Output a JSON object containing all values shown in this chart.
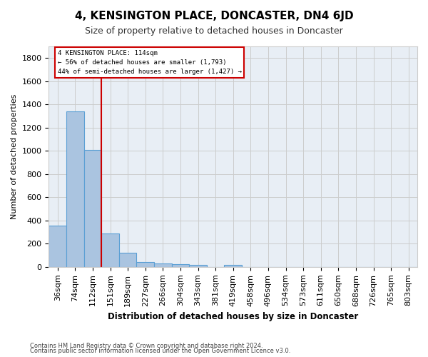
{
  "title": "4, KENSINGTON PLACE, DONCASTER, DN4 6JD",
  "subtitle": "Size of property relative to detached houses in Doncaster",
  "xlabel": "Distribution of detached houses by size in Doncaster",
  "ylabel": "Number of detached properties",
  "footnote1": "Contains HM Land Registry data © Crown copyright and database right 2024.",
  "footnote2": "Contains public sector information licensed under the Open Government Licence v3.0.",
  "bins": [
    "36sqm",
    "74sqm",
    "112sqm",
    "151sqm",
    "189sqm",
    "227sqm",
    "266sqm",
    "304sqm",
    "343sqm",
    "381sqm",
    "419sqm",
    "458sqm",
    "496sqm",
    "534sqm",
    "573sqm",
    "611sqm",
    "650sqm",
    "688sqm",
    "726sqm",
    "765sqm",
    "803sqm"
  ],
  "values": [
    355,
    1340,
    1010,
    285,
    125,
    40,
    30,
    22,
    18,
    0,
    20,
    0,
    0,
    0,
    0,
    0,
    0,
    0,
    0,
    0,
    0
  ],
  "bar_color": "#aac4e0",
  "bar_edge_color": "#5a9fd4",
  "grid_color": "#cccccc",
  "vline_x": 2.5,
  "vline_color": "#cc0000",
  "annotation_text": "4 KENSINGTON PLACE: 114sqm\n← 56% of detached houses are smaller (1,793)\n44% of semi-detached houses are larger (1,427) →",
  "annotation_box_color": "#cc0000",
  "ylim": [
    0,
    1900
  ],
  "yticks": [
    0,
    200,
    400,
    600,
    800,
    1000,
    1200,
    1400,
    1600,
    1800
  ],
  "bg_color": "#e8eef5"
}
